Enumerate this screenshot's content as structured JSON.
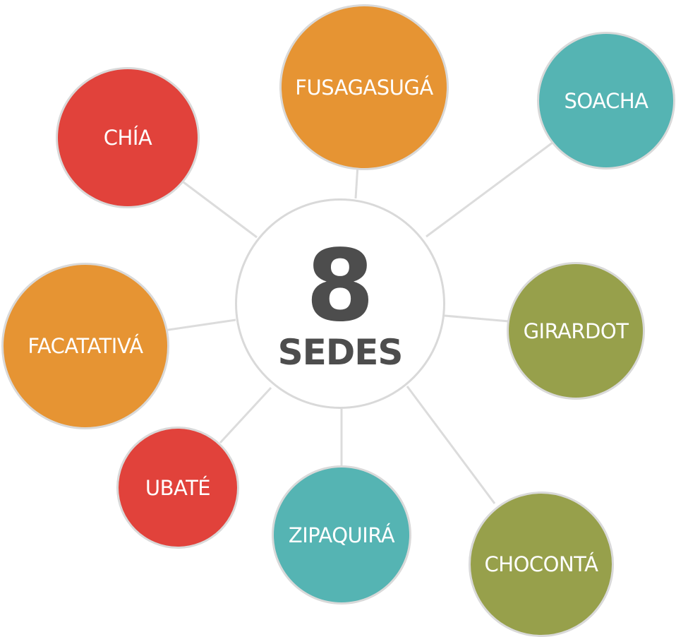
{
  "hub": {
    "number": "8",
    "label": "SEDES"
  },
  "colors": {
    "orange": "#e69433",
    "teal": "#55b4b3",
    "red": "#e1423b",
    "olive": "#97a04b",
    "spoke": "#dcdcdc",
    "hub_text": "#4d4d4d"
  },
  "sedes": [
    {
      "name": "FUSAGASUGÁ",
      "color": "#e69433"
    },
    {
      "name": "SOACHA",
      "color": "#55b4b3"
    },
    {
      "name": "CHÍA",
      "color": "#e1423b"
    },
    {
      "name": "FACATATIVÁ",
      "color": "#e69433"
    },
    {
      "name": "GIRARDOT",
      "color": "#97a04b"
    },
    {
      "name": "UBATÉ",
      "color": "#e1423b"
    },
    {
      "name": "ZIPAQUIRÁ",
      "color": "#55b4b3"
    },
    {
      "name": "CHOCONTÁ",
      "color": "#97a04b"
    }
  ]
}
